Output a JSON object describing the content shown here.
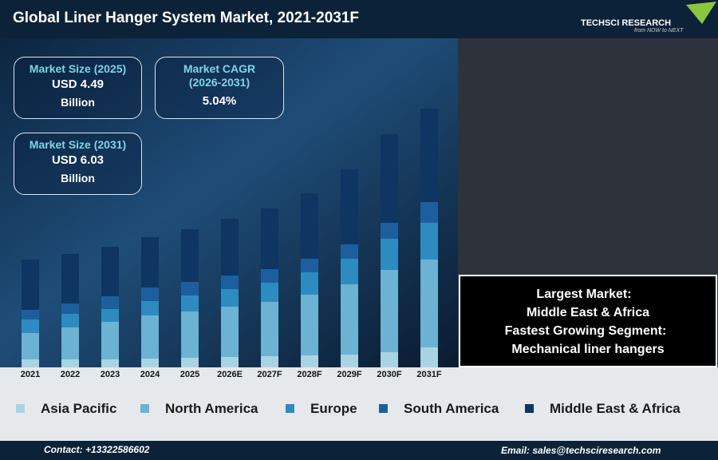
{
  "header": {
    "title": "Global Liner Hanger System Market, 2021-2031F",
    "logo": "TECHSCI RESEARCH",
    "tagline": "from NOW to NEXT"
  },
  "stats": [
    {
      "label": "Market Size (2025)",
      "value": "USD 4.49",
      "unit": "Billion"
    },
    {
      "label": "Market CAGR (2026-2031)",
      "value": "5.04%"
    },
    {
      "label": "Market Size (2031)",
      "value": "USD 6.03",
      "unit": "Billion"
    }
  ],
  "callout": [
    "Largest Market:",
    "Middle East & Africa",
    "Fastest Growing Segment:",
    "Mechanical liner hangers"
  ],
  "footer": {
    "contact": "Contact: +13322586602",
    "email": "Email: sales@techsciresearch.com"
  },
  "chart_data": {
    "type": "stacked-bar",
    "categories": [
      "2021",
      "2022",
      "2023",
      "2024",
      "2025",
      "2026E",
      "2027F",
      "2028F",
      "2029F",
      "2030F",
      "2031F"
    ],
    "series": [
      {
        "name": "Asia Pacific",
        "color": "#a9d3e3",
        "values": [
          10,
          10,
          10,
          11,
          12,
          13,
          14,
          15,
          16,
          19,
          25
        ]
      },
      {
        "name": "North America",
        "color": "#6bb2d3",
        "values": [
          33,
          40,
          47,
          54,
          58,
          63,
          68,
          76,
          88,
          103,
          110
        ]
      },
      {
        "name": "Europe",
        "color": "#2e8bc0",
        "values": [
          17,
          17,
          16,
          18,
          20,
          22,
          24,
          28,
          32,
          39,
          46
        ]
      },
      {
        "name": "South America",
        "color": "#1d5f9e",
        "values": [
          12,
          13,
          16,
          17,
          17,
          17,
          17,
          17,
          18,
          20,
          26
        ]
      },
      {
        "name": "Middle East & Africa",
        "color": "#0f3563",
        "values": [
          63,
          62,
          62,
          63,
          66,
          71,
          76,
          82,
          94,
          111,
          117
        ]
      }
    ]
  }
}
